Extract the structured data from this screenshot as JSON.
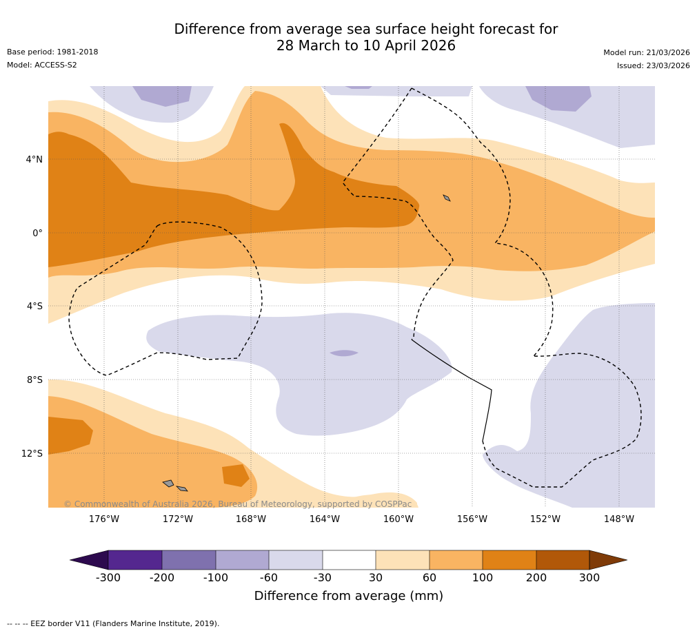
{
  "header": {
    "title_line1": "Difference from average sea surface height forecast for",
    "title_line2": "28 March to 10 April 2026",
    "base_period": "Base period: 1981-2018",
    "model": "Model: ACCESS-S2",
    "model_run": "Model run: 21/03/2026",
    "issued": "Issued: 23/03/2026"
  },
  "map": {
    "lat_labels": [
      "4°N",
      "0°",
      "4°S",
      "8°S",
      "12°S"
    ],
    "lon_labels": [
      "176°W",
      "172°W",
      "168°W",
      "164°W",
      "160°W",
      "156°W",
      "152°W",
      "148°W"
    ],
    "copyright": "© Commonwealth of Australia 2026, Bureau of Meteorology, supported by COSPPac"
  },
  "colorbar": {
    "title": "Difference from average (mm)",
    "ticks": [
      "-300",
      "-200",
      "-100",
      "-60",
      "-30",
      "30",
      "60",
      "100",
      "200",
      "300"
    ],
    "colors": {
      "below_min": "#2d0a4e",
      "n300_n200": "#54278f",
      "n200_n100": "#7f71ae",
      "n100_n60": "#b0a9d2",
      "n60_n30": "#d9d9eb",
      "n30_30": "#ffffff",
      "p30_60": "#fde2b8",
      "p60_100": "#f9b462",
      "p100_200": "#e08216",
      "p200_300": "#b15809",
      "above_max": "#7f3b08"
    }
  },
  "footnote": "--  --  -- EEZ border V11 (Flanders Marine Institute, 2019)."
}
